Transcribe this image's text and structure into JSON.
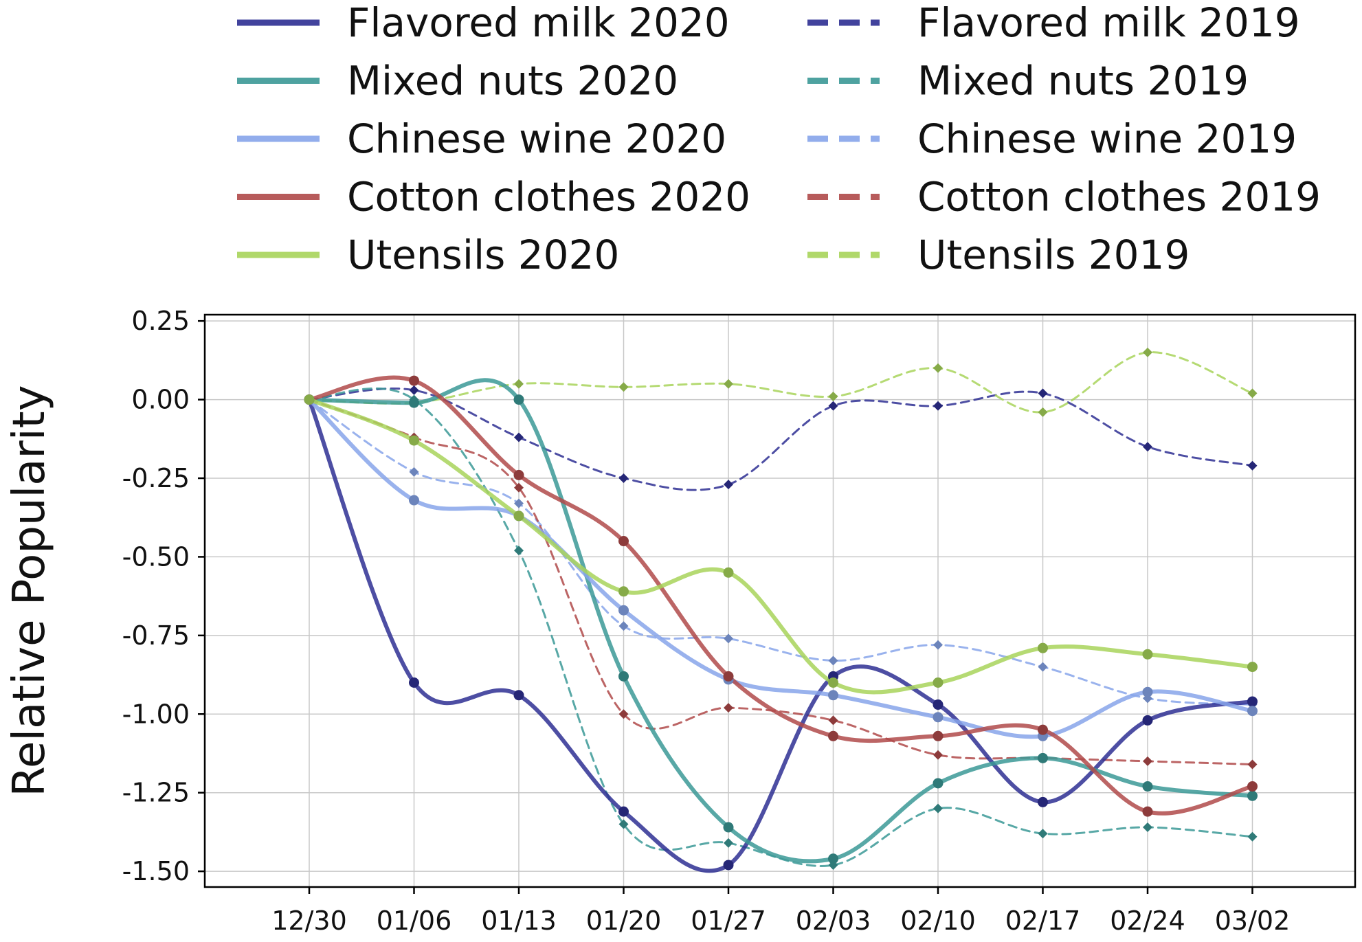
{
  "chart_data": {
    "type": "line",
    "title": "",
    "xlabel": "",
    "ylabel": "Relative Popularity",
    "categories": [
      "12/30",
      "01/06",
      "01/13",
      "01/20",
      "01/27",
      "02/03",
      "02/10",
      "02/17",
      "02/24",
      "03/02"
    ],
    "ylim": [
      -1.55,
      0.27
    ],
    "yticks": [
      0.25,
      0.0,
      -0.25,
      -0.5,
      -0.75,
      -1.0,
      -1.25,
      -1.5
    ],
    "ytick_labels": [
      "0.25",
      "0.00",
      "-0.25",
      "-0.50",
      "-0.75",
      "-1.00",
      "-1.25",
      "-1.50"
    ],
    "grid": true,
    "legend_position": "top",
    "series": [
      {
        "name": "Flavored milk 2020",
        "color": "#2e2f93",
        "style": "solid",
        "values": [
          0.0,
          -0.9,
          -0.94,
          -1.31,
          -1.48,
          -0.88,
          -0.97,
          -1.28,
          -1.02,
          -0.96
        ]
      },
      {
        "name": "Mixed nuts 2020",
        "color": "#3b9996",
        "style": "solid",
        "values": [
          0.0,
          -0.01,
          0.0,
          -0.88,
          -1.36,
          -1.46,
          -1.22,
          -1.14,
          -1.23,
          -1.26
        ]
      },
      {
        "name": "Chinese wine 2020",
        "color": "#87a5ea",
        "style": "solid",
        "values": [
          0.0,
          -0.32,
          -0.37,
          -0.67,
          -0.89,
          -0.94,
          -1.01,
          -1.07,
          -0.93,
          -0.99
        ]
      },
      {
        "name": "Cotton clothes 2020",
        "color": "#b04a4a",
        "style": "solid",
        "values": [
          0.0,
          0.06,
          -0.24,
          -0.45,
          -0.88,
          -1.07,
          -1.07,
          -1.05,
          -1.31,
          -1.23
        ]
      },
      {
        "name": "Utensils 2020",
        "color": "#a8d45a",
        "style": "solid",
        "values": [
          0.0,
          -0.13,
          -0.37,
          -0.61,
          -0.55,
          -0.9,
          -0.9,
          -0.79,
          -0.81,
          -0.85
        ]
      },
      {
        "name": "Flavored milk 2019",
        "color": "#2e2f93",
        "style": "dashed",
        "values": [
          0.0,
          0.03,
          -0.12,
          -0.25,
          -0.27,
          -0.02,
          -0.02,
          0.02,
          -0.15,
          -0.21
        ]
      },
      {
        "name": "Mixed nuts 2019",
        "color": "#3b9996",
        "style": "dashed",
        "values": [
          0.0,
          0.0,
          -0.48,
          -1.35,
          -1.41,
          -1.48,
          -1.3,
          -1.38,
          -1.36,
          -1.39
        ]
      },
      {
        "name": "Chinese wine 2019",
        "color": "#87a5ea",
        "style": "dashed",
        "values": [
          0.0,
          -0.23,
          -0.33,
          -0.72,
          -0.76,
          -0.83,
          -0.78,
          -0.85,
          -0.95,
          -0.97
        ]
      },
      {
        "name": "Cotton clothes 2019",
        "color": "#b04a4a",
        "style": "dashed",
        "values": [
          0.0,
          -0.12,
          -0.28,
          -1.0,
          -0.98,
          -1.02,
          -1.13,
          -1.14,
          -1.15,
          -1.16
        ]
      },
      {
        "name": "Utensils 2019",
        "color": "#a8d45a",
        "style": "dashed",
        "values": [
          0.0,
          -0.01,
          0.05,
          0.04,
          0.05,
          0.01,
          0.1,
          -0.04,
          0.15,
          0.02
        ]
      }
    ]
  }
}
